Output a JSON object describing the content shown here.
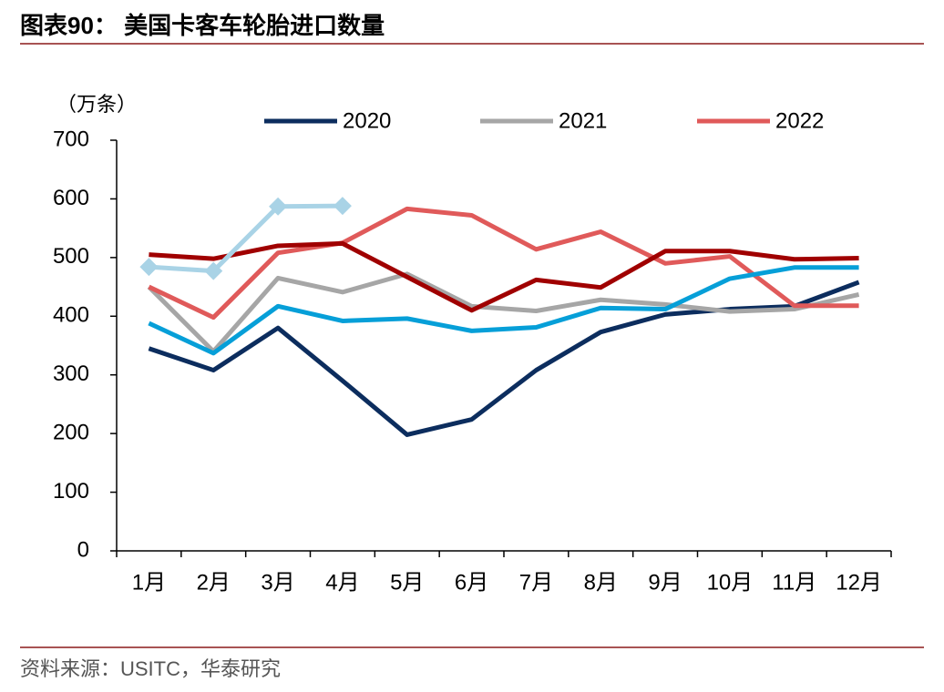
{
  "chart_data": {
    "type": "line",
    "title": "图表90： 美国卡客车轮胎进口数量",
    "y_label": "（万条）",
    "source": "资料来源：USITC，华泰研究",
    "categories": [
      "1月",
      "2月",
      "3月",
      "4月",
      "5月",
      "6月",
      "7月",
      "8月",
      "9月",
      "10月",
      "11月",
      "12月"
    ],
    "ylim": [
      0,
      700
    ],
    "yticks": [
      0,
      100,
      200,
      300,
      400,
      500,
      600,
      700
    ],
    "series": [
      {
        "name": "2020",
        "color": "#0c2d5e",
        "values": [
          345,
          308,
          380,
          290,
          198,
          224,
          308,
          373,
          403,
          412,
          417,
          458
        ]
      },
      {
        "name": "2021",
        "color": "#a6a6a6",
        "values": [
          450,
          340,
          465,
          441,
          472,
          417,
          409,
          428,
          420,
          408,
          412,
          437
        ]
      },
      {
        "name": "2022",
        "color": "#e05a5a",
        "values": [
          450,
          398,
          508,
          525,
          583,
          572,
          514,
          544,
          490,
          502,
          418,
          418
        ]
      },
      {
        "color": "#a00000",
        "values": [
          505,
          498,
          520,
          524,
          467,
          410,
          462,
          449,
          511,
          511,
          497,
          499
        ]
      },
      {
        "color": "#069fd8",
        "values": [
          388,
          337,
          417,
          392,
          396,
          375,
          381,
          414,
          412,
          464,
          483,
          483
        ]
      },
      {
        "color": "#a9d3e6",
        "marker": "diamond",
        "values": [
          484,
          477,
          587,
          588,
          null,
          null,
          null,
          null,
          null,
          null,
          null,
          null
        ]
      }
    ]
  }
}
